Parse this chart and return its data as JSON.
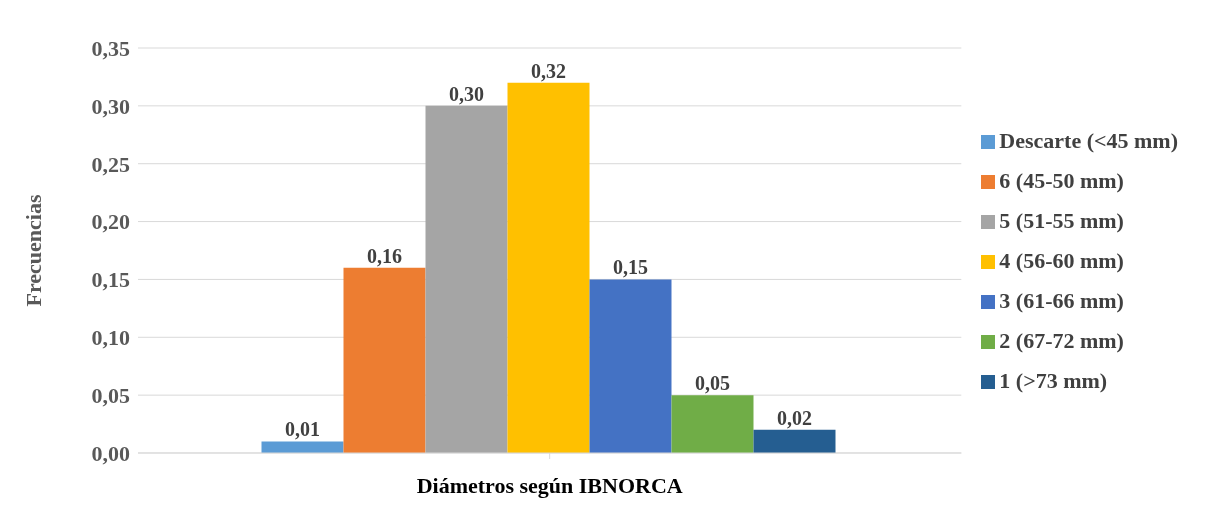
{
  "chart_data": {
    "type": "bar",
    "xlabel": "Diámetros según IBNORCA",
    "ylabel": "Frecuencias",
    "categories": [
      null
    ],
    "series": [
      {
        "name": "Descarte (<45 mm)",
        "color": "#5b9bd5",
        "values": [
          0.01
        ],
        "value_labels": [
          "0,01"
        ]
      },
      {
        "name": "6 (45-50 mm)",
        "color": "#ed7d31",
        "values": [
          0.16
        ],
        "value_labels": [
          "0,16"
        ]
      },
      {
        "name": "5 (51-55 mm)",
        "color": "#a5a5a5",
        "values": [
          0.3
        ],
        "value_labels": [
          "0,30"
        ]
      },
      {
        "name": "4 (56-60 mm)",
        "color": "#ffc000",
        "values": [
          0.32
        ],
        "value_labels": [
          "0,32"
        ]
      },
      {
        "name": "3 (61-66 mm)",
        "color": "#4472c4",
        "values": [
          0.15
        ],
        "value_labels": [
          "0,15"
        ]
      },
      {
        "name": "2 (67-72 mm)",
        "color": "#70ad47",
        "values": [
          0.05
        ],
        "value_labels": [
          "0,05"
        ]
      },
      {
        "name": "1 (>73 mm)",
        "color": "#255e91",
        "values": [
          0.02
        ],
        "value_labels": [
          "0,02"
        ]
      }
    ],
    "ylim": [
      0,
      0.35
    ],
    "yticks": [
      {
        "value": 0,
        "label": "0,00"
      },
      {
        "value": 0.05,
        "label": "0,05"
      },
      {
        "value": 0.1,
        "label": "0,10"
      },
      {
        "value": 0.15,
        "label": "0,15"
      },
      {
        "value": 0.2,
        "label": "0,20"
      },
      {
        "value": 0.25,
        "label": "0,25"
      },
      {
        "value": 0.3,
        "label": "0,30"
      },
      {
        "value": 0.35,
        "label": "0,35"
      }
    ],
    "grid": "y",
    "legend": "right"
  }
}
